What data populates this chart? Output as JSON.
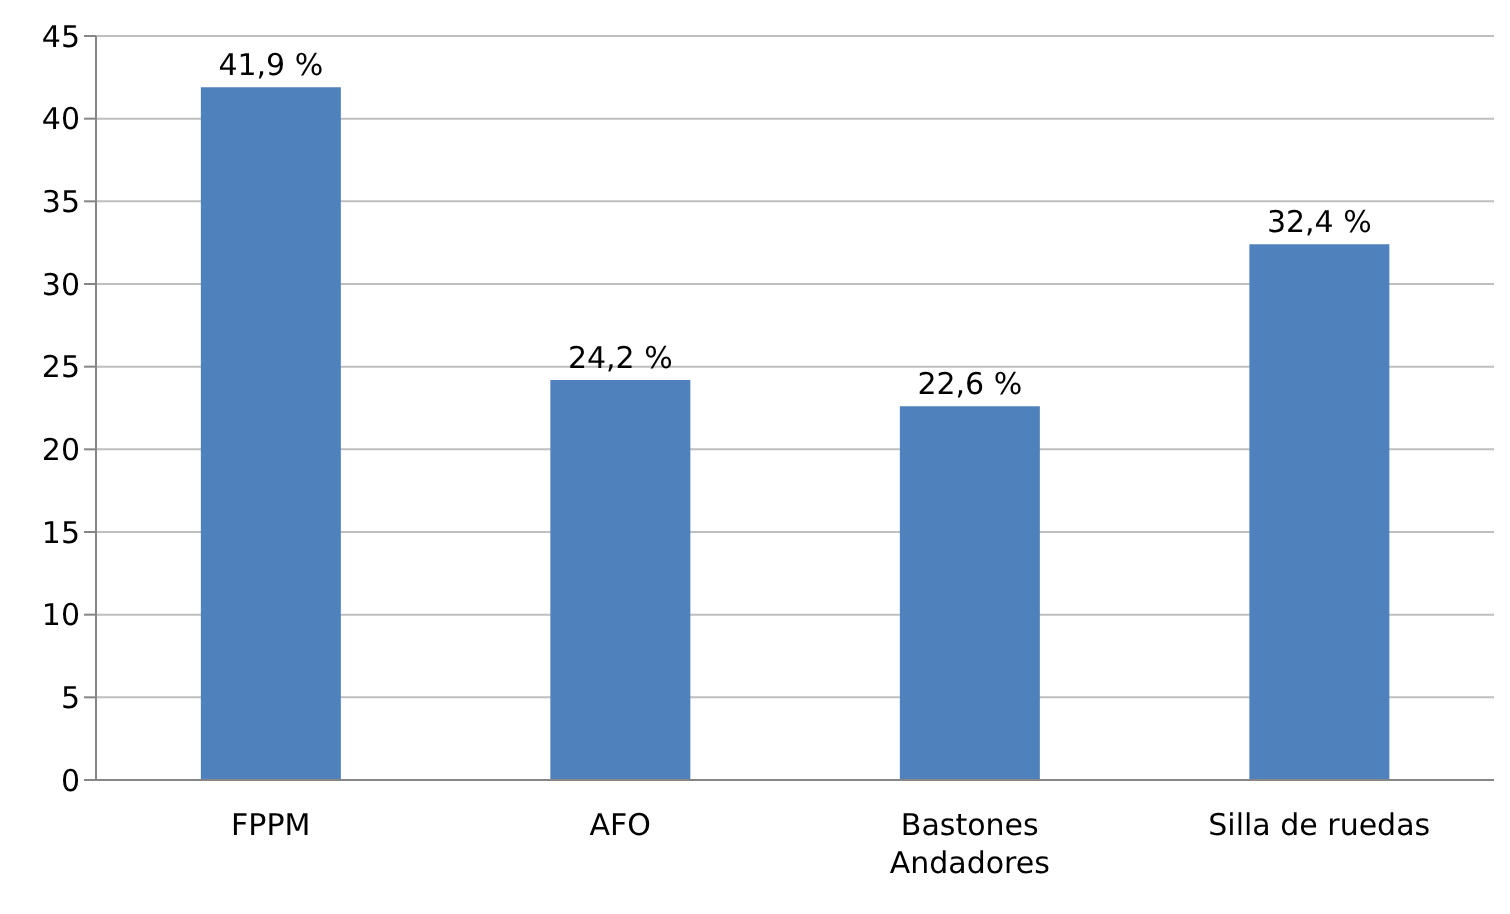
{
  "chart_data": {
    "type": "bar",
    "categories": [
      "FPPM",
      "AFO",
      "Bastones\nAndadores",
      "Silla de ruedas"
    ],
    "values": [
      41.9,
      24.2,
      22.6,
      32.4
    ],
    "value_labels": [
      "41,9 %",
      "24,2 %",
      "22,6 %",
      "32,4 %"
    ],
    "color": "#4f81bd",
    "ylim": [
      0,
      45
    ],
    "yticks": [
      0,
      5,
      10,
      15,
      20,
      25,
      30,
      35,
      40,
      45
    ],
    "grid": "y",
    "legend": false
  }
}
